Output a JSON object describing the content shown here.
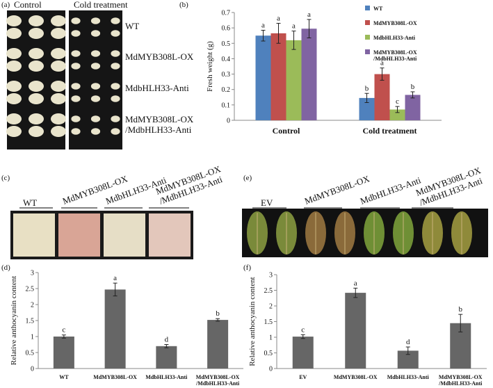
{
  "panel_letters": [
    "(a)",
    "(b)",
    "(c)",
    "(d)",
    "(e)",
    "(f)"
  ],
  "photo_a": {
    "columns": [
      "Control",
      "Cold treatment"
    ],
    "rows": [
      "WT",
      "MdMYB308L-OX",
      "MdbHLH33-Anti",
      "MdMYB308L-OX /MdbHLH33-Anti"
    ]
  },
  "photo_c": {
    "labels": [
      "WT",
      "MdMYB308L-OX",
      "MdbHLH33-Anti",
      "MdMYB308L-OX /MdbHLH33-Anti"
    ]
  },
  "photo_e": {
    "labels": [
      "EV",
      "MdMYB308L-OX",
      "MdbHLH33-Anti",
      "MdMYB308L-OX /MdbHLH33-Anti"
    ]
  },
  "chart_data": [
    {
      "type": "bar",
      "y_label": "Fresh weight (g)",
      "categories": [
        "Control",
        "Cold treatment"
      ],
      "series": [
        {
          "name": "WT",
          "color": "#4f81bd",
          "values": [
            0.55,
            0.145
          ],
          "errors": [
            0.035,
            0.03
          ],
          "letters": [
            "a",
            "b"
          ]
        },
        {
          "name": "MdMYB308L-OX",
          "color": "#c0504d",
          "values": [
            0.565,
            0.3
          ],
          "errors": [
            0.065,
            0.04
          ],
          "letters": [
            "a",
            "a"
          ]
        },
        {
          "name": "MdbHLH33-Anti",
          "color": "#9bbb59",
          "values": [
            0.52,
            0.07
          ],
          "errors": [
            0.06,
            0.02
          ],
          "letters": [
            "a",
            "c"
          ]
        },
        {
          "name": "MdMYB308L-OX /MdbHLH33-Anti",
          "color": "#8064a2",
          "values": [
            0.595,
            0.165
          ],
          "errors": [
            0.06,
            0.02
          ],
          "letters": [
            "a",
            "b"
          ]
        }
      ],
      "ylim": [
        0,
        0.7
      ],
      "yticks": [
        0,
        0.1,
        0.2,
        0.3,
        0.4,
        0.5,
        0.6,
        0.7
      ]
    },
    {
      "type": "bar",
      "y_label": "Relative anthocyanin content",
      "categories": [
        "WT",
        "MdMYB308L-OX",
        "MdbHLH33-Anti",
        "MdMYB308L-OX /MdbHLH33-Anti"
      ],
      "values": [
        1.0,
        2.47,
        0.7,
        1.52
      ],
      "errors": [
        0.05,
        0.2,
        0.05,
        0.04
      ],
      "letters": [
        "c",
        "a",
        "d",
        "b"
      ],
      "color": "#666666",
      "ylim": [
        0,
        3
      ],
      "yticks": [
        0,
        0.5,
        1,
        1.5,
        2,
        2.5,
        3
      ]
    },
    {
      "type": "bar",
      "y_label": "Relative anthocyanin content",
      "categories": [
        "EV",
        "MdMYB308L-OX",
        "MdbHLH33-Anti",
        "MdMYB308L-OX /MdbHLH33-Anti"
      ],
      "values": [
        1.02,
        2.42,
        0.57,
        1.45
      ],
      "errors": [
        0.06,
        0.15,
        0.12,
        0.28
      ],
      "letters": [
        "c",
        "a",
        "d",
        "b"
      ],
      "color": "#666666",
      "ylim": [
        0,
        3
      ],
      "yticks": [
        0,
        0.5,
        1,
        1.5,
        2,
        2.5,
        3
      ]
    }
  ]
}
